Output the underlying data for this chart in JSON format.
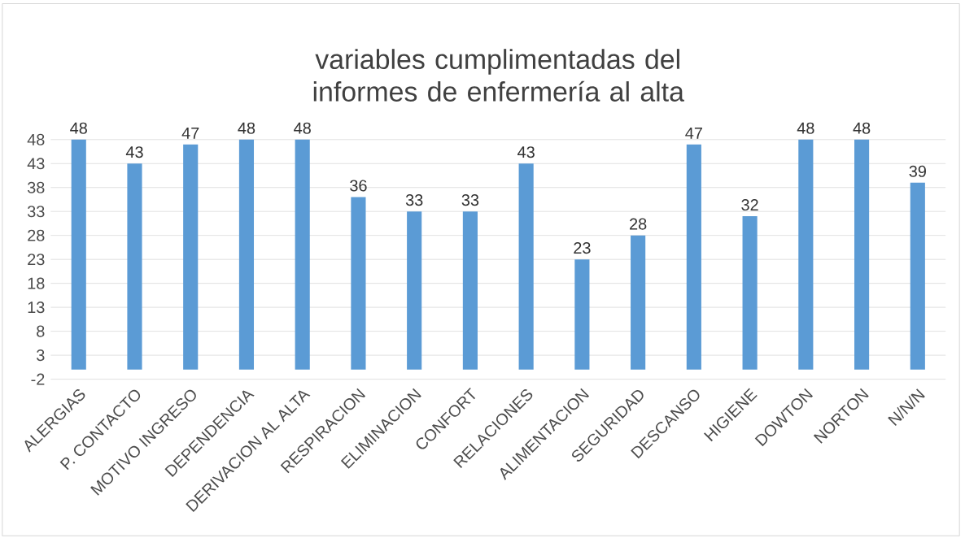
{
  "chart_data": {
    "type": "bar",
    "title": "variables cumplimentadas del informes de enfermería al alta",
    "categories": [
      "ALERGIAS",
      "P. CONTACTO",
      "MOTIVO INGRESO",
      "DEPENDENCIA",
      "DERIVACION AL ALTA",
      "RESPIRACION",
      "ELIMINACION",
      "CONFORT",
      "RELACIONES",
      "ALIMENTACION",
      "SEGURIDAD",
      "DESCANSO",
      "HIGIENE",
      "DOWTON",
      "NORTON",
      "N/N/N"
    ],
    "values": [
      48,
      43,
      47,
      48,
      48,
      36,
      33,
      33,
      43,
      23,
      28,
      47,
      32,
      48,
      48,
      39
    ],
    "color": "#5b9bd5",
    "ylim": [
      -2,
      48
    ],
    "yticks": [
      -2,
      3,
      8,
      13,
      18,
      23,
      28,
      33,
      38,
      43,
      48
    ],
    "grid": "y",
    "data_labels": true
  }
}
